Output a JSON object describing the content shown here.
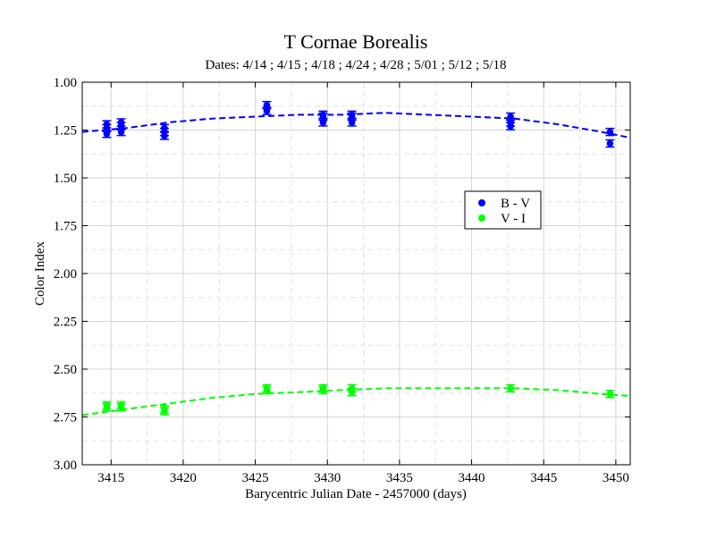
{
  "chart_data": {
    "type": "scatter",
    "title": "T Cornae Borealis",
    "subtitle": "Dates:  4/14 ; 4/15 ; 4/18 ; 4/24 ; 4/28 ; 5/01 ; 5/12 ; 5/18",
    "xlabel": "Barycentric Julian Date - 2457000 (days)",
    "ylabel": "Color Index",
    "xlim": [
      3413,
      3451
    ],
    "ylim": [
      3.0,
      1.0
    ],
    "y_inverted": true,
    "x_ticks": [
      "3415",
      "3420",
      "3425",
      "3430",
      "3435",
      "3440",
      "3445",
      "3450"
    ],
    "x_tick_values": [
      3415,
      3420,
      3425,
      3430,
      3435,
      3440,
      3445,
      3450
    ],
    "y_ticks": [
      "1.00",
      "1.25",
      "1.50",
      "1.75",
      "2.00",
      "2.25",
      "2.50",
      "2.75",
      "3.00"
    ],
    "y_tick_values": [
      1.0,
      1.25,
      1.5,
      1.75,
      2.0,
      2.25,
      2.5,
      2.75,
      3.0
    ],
    "grid": true,
    "legend_position": "right-middle",
    "series": [
      {
        "name": "B - V",
        "color": "#0000ff",
        "points": [
          {
            "x": 3414.7,
            "y": 1.22
          },
          {
            "x": 3414.7,
            "y": 1.24
          },
          {
            "x": 3414.7,
            "y": 1.27
          },
          {
            "x": 3415.7,
            "y": 1.21
          },
          {
            "x": 3415.7,
            "y": 1.23
          },
          {
            "x": 3415.7,
            "y": 1.26
          },
          {
            "x": 3418.7,
            "y": 1.24
          },
          {
            "x": 3418.7,
            "y": 1.26
          },
          {
            "x": 3418.7,
            "y": 1.28
          },
          {
            "x": 3425.8,
            "y": 1.12
          },
          {
            "x": 3425.8,
            "y": 1.15
          },
          {
            "x": 3429.7,
            "y": 1.17
          },
          {
            "x": 3429.7,
            "y": 1.18
          },
          {
            "x": 3429.7,
            "y": 1.21
          },
          {
            "x": 3431.7,
            "y": 1.17
          },
          {
            "x": 3431.7,
            "y": 1.18
          },
          {
            "x": 3431.7,
            "y": 1.21
          },
          {
            "x": 3442.7,
            "y": 1.18
          },
          {
            "x": 3442.7,
            "y": 1.21
          },
          {
            "x": 3442.7,
            "y": 1.23
          },
          {
            "x": 3449.6,
            "y": 1.26
          },
          {
            "x": 3449.6,
            "y": 1.32
          }
        ],
        "fit": [
          {
            "x": 3413,
            "y": 1.26
          },
          {
            "x": 3416,
            "y": 1.24
          },
          {
            "x": 3419,
            "y": 1.21
          },
          {
            "x": 3422,
            "y": 1.19
          },
          {
            "x": 3425,
            "y": 1.18
          },
          {
            "x": 3428,
            "y": 1.17
          },
          {
            "x": 3431,
            "y": 1.17
          },
          {
            "x": 3434,
            "y": 1.16
          },
          {
            "x": 3437,
            "y": 1.17
          },
          {
            "x": 3440,
            "y": 1.18
          },
          {
            "x": 3443,
            "y": 1.19
          },
          {
            "x": 3446,
            "y": 1.22
          },
          {
            "x": 3449,
            "y": 1.26
          },
          {
            "x": 3451,
            "y": 1.29
          }
        ]
      },
      {
        "name": "V - I",
        "color": "#00ff00",
        "points": [
          {
            "x": 3414.7,
            "y": 2.69
          },
          {
            "x": 3414.7,
            "y": 2.7
          },
          {
            "x": 3415.7,
            "y": 2.69
          },
          {
            "x": 3415.7,
            "y": 2.7
          },
          {
            "x": 3418.7,
            "y": 2.71
          },
          {
            "x": 3418.7,
            "y": 2.72
          },
          {
            "x": 3425.8,
            "y": 2.6
          },
          {
            "x": 3425.8,
            "y": 2.61
          },
          {
            "x": 3429.7,
            "y": 2.6
          },
          {
            "x": 3429.7,
            "y": 2.61
          },
          {
            "x": 3431.7,
            "y": 2.6
          },
          {
            "x": 3431.7,
            "y": 2.62
          },
          {
            "x": 3442.7,
            "y": 2.6
          },
          {
            "x": 3449.6,
            "y": 2.63
          }
        ],
        "fit": [
          {
            "x": 3413,
            "y": 2.74
          },
          {
            "x": 3416,
            "y": 2.71
          },
          {
            "x": 3419,
            "y": 2.68
          },
          {
            "x": 3422,
            "y": 2.65
          },
          {
            "x": 3425,
            "y": 2.63
          },
          {
            "x": 3428,
            "y": 2.62
          },
          {
            "x": 3431,
            "y": 2.61
          },
          {
            "x": 3434,
            "y": 2.6
          },
          {
            "x": 3437,
            "y": 2.6
          },
          {
            "x": 3440,
            "y": 2.6
          },
          {
            "x": 3443,
            "y": 2.6
          },
          {
            "x": 3446,
            "y": 2.61
          },
          {
            "x": 3449,
            "y": 2.63
          },
          {
            "x": 3451,
            "y": 2.64
          }
        ]
      }
    ]
  }
}
